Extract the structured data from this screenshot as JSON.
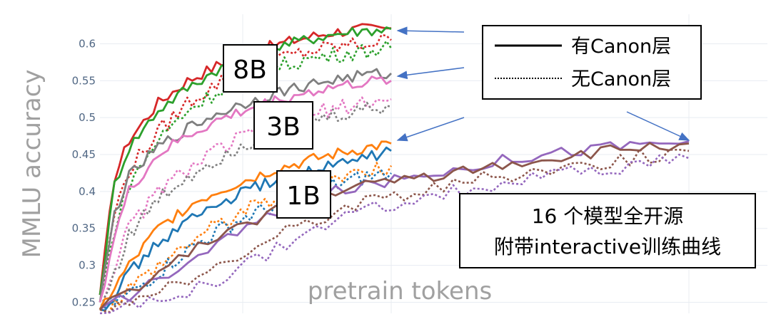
{
  "chart_data": {
    "type": "line",
    "ylabel": "MMLU accuracy",
    "xlabel": "pretrain tokens",
    "ylim": [
      0.235,
      0.64
    ],
    "y_ticks": [
      "0.25",
      "0.3",
      "0.35",
      "0.4",
      "0.45",
      "0.5",
      "0.55",
      "0.6"
    ],
    "y_tick_values": [
      0.25,
      0.3,
      0.35,
      0.4,
      0.45,
      0.5,
      0.55,
      0.6
    ],
    "grid": true,
    "series": [
      {
        "name": "8B",
        "color": "#d62728",
        "dash": false,
        "endpoint": 1,
        "x": [
          0,
          0.05,
          0.1,
          0.2,
          0.3,
          0.4,
          0.5,
          0.6,
          0.7,
          0.8,
          0.9,
          1
        ],
        "values": [
          0.26,
          0.42,
          0.47,
          0.52,
          0.55,
          0.57,
          0.585,
          0.598,
          0.608,
          0.616,
          0.62,
          0.621
        ]
      },
      {
        "color": "#2ca02c",
        "dash": false,
        "endpoint": 1,
        "x": [
          0,
          0.05,
          0.1,
          0.2,
          0.3,
          0.4,
          0.5,
          0.6,
          0.7,
          0.8,
          0.9,
          1
        ],
        "values": [
          0.26,
          0.41,
          0.46,
          0.51,
          0.54,
          0.565,
          0.58,
          0.595,
          0.605,
          0.613,
          0.618,
          0.62
        ]
      },
      {
        "color": "#d62728",
        "dash": true,
        "endpoint": 1,
        "x": [
          0,
          0.05,
          0.1,
          0.2,
          0.3,
          0.4,
          0.5,
          0.6,
          0.7,
          0.8,
          0.9,
          1
        ],
        "values": [
          0.25,
          0.37,
          0.43,
          0.48,
          0.52,
          0.545,
          0.565,
          0.578,
          0.588,
          0.595,
          0.6,
          0.605
        ]
      },
      {
        "color": "#2ca02c",
        "dash": true,
        "endpoint": 1,
        "x": [
          0,
          0.05,
          0.1,
          0.2,
          0.3,
          0.4,
          0.5,
          0.6,
          0.7,
          0.8,
          0.9,
          1
        ],
        "values": [
          0.25,
          0.35,
          0.41,
          0.47,
          0.51,
          0.535,
          0.555,
          0.568,
          0.578,
          0.585,
          0.59,
          0.594
        ]
      },
      {
        "name": "3B",
        "color": "#7f7f7f",
        "dash": false,
        "endpoint": 1,
        "x": [
          0,
          0.05,
          0.1,
          0.2,
          0.3,
          0.4,
          0.5,
          0.6,
          0.7,
          0.8,
          0.9,
          1
        ],
        "values": [
          0.25,
          0.37,
          0.42,
          0.46,
          0.485,
          0.505,
          0.52,
          0.533,
          0.543,
          0.551,
          0.557,
          0.56
        ]
      },
      {
        "color": "#e377c2",
        "dash": false,
        "endpoint": 1,
        "x": [
          0,
          0.05,
          0.1,
          0.2,
          0.3,
          0.4,
          0.5,
          0.6,
          0.7,
          0.8,
          0.9,
          1
        ],
        "values": [
          0.25,
          0.34,
          0.4,
          0.45,
          0.475,
          0.495,
          0.51,
          0.523,
          0.533,
          0.541,
          0.547,
          0.55
        ]
      },
      {
        "color": "#e377c2",
        "dash": true,
        "endpoint": 1,
        "x": [
          0,
          0.05,
          0.1,
          0.2,
          0.3,
          0.4,
          0.5,
          0.6,
          0.7,
          0.8,
          0.9,
          1
        ],
        "values": [
          0.24,
          0.3,
          0.35,
          0.4,
          0.43,
          0.455,
          0.475,
          0.49,
          0.502,
          0.512,
          0.52,
          0.525
        ]
      },
      {
        "color": "#7f7f7f",
        "dash": true,
        "endpoint": 1,
        "x": [
          0,
          0.05,
          0.1,
          0.2,
          0.3,
          0.4,
          0.5,
          0.6,
          0.7,
          0.8,
          0.9,
          1
        ],
        "values": [
          0.24,
          0.29,
          0.34,
          0.39,
          0.42,
          0.445,
          0.465,
          0.48,
          0.492,
          0.502,
          0.51,
          0.515
        ]
      },
      {
        "name": "1B",
        "color": "#ff7f0e",
        "dash": false,
        "endpoint": 1,
        "x": [
          0,
          0.05,
          0.1,
          0.2,
          0.3,
          0.4,
          0.5,
          0.6,
          0.7,
          0.8,
          0.9,
          1
        ],
        "values": [
          0.24,
          0.27,
          0.3,
          0.35,
          0.38,
          0.4,
          0.415,
          0.43,
          0.44,
          0.45,
          0.458,
          0.465
        ]
      },
      {
        "color": "#1f77b4",
        "dash": false,
        "endpoint": 1,
        "x": [
          0,
          0.05,
          0.1,
          0.2,
          0.3,
          0.4,
          0.5,
          0.6,
          0.7,
          0.8,
          0.9,
          1
        ],
        "values": [
          0.24,
          0.26,
          0.29,
          0.33,
          0.36,
          0.38,
          0.4,
          0.415,
          0.425,
          0.435,
          0.445,
          0.455
        ]
      },
      {
        "color": "#ff7f0e",
        "dash": true,
        "endpoint": 1,
        "x": [
          0,
          0.05,
          0.1,
          0.2,
          0.3,
          0.4,
          0.5,
          0.6,
          0.7,
          0.8,
          0.9,
          1
        ],
        "values": [
          0.24,
          0.25,
          0.27,
          0.3,
          0.33,
          0.355,
          0.375,
          0.39,
          0.405,
          0.418,
          0.428,
          0.435
        ]
      },
      {
        "color": "#1f77b4",
        "dash": true,
        "endpoint": 1,
        "x": [
          0,
          0.05,
          0.1,
          0.2,
          0.3,
          0.4,
          0.5,
          0.6,
          0.7,
          0.8,
          0.9,
          1
        ],
        "values": [
          0.24,
          0.25,
          0.26,
          0.29,
          0.32,
          0.345,
          0.365,
          0.38,
          0.395,
          0.408,
          0.418,
          0.425
        ]
      },
      {
        "color": "#9467bd",
        "dash": false,
        "endpoint": 2,
        "x": [
          0,
          0.1,
          0.2,
          0.3,
          0.4,
          0.5,
          0.6,
          0.7,
          0.8,
          0.9,
          1
        ],
        "values": [
          0.24,
          0.28,
          0.33,
          0.37,
          0.4,
          0.415,
          0.43,
          0.445,
          0.455,
          0.463,
          0.468
        ]
      },
      {
        "color": "#8c564b",
        "dash": false,
        "endpoint": 2,
        "x": [
          0,
          0.1,
          0.2,
          0.3,
          0.4,
          0.5,
          0.6,
          0.7,
          0.8,
          0.9,
          1
        ],
        "values": [
          0.24,
          0.29,
          0.34,
          0.375,
          0.4,
          0.415,
          0.425,
          0.438,
          0.448,
          0.458,
          0.465
        ]
      },
      {
        "color": "#8c564b",
        "dash": true,
        "endpoint": 2,
        "x": [
          0,
          0.1,
          0.2,
          0.3,
          0.4,
          0.5,
          0.6,
          0.7,
          0.8,
          0.9,
          1
        ],
        "values": [
          0.24,
          0.26,
          0.3,
          0.34,
          0.375,
          0.395,
          0.41,
          0.425,
          0.435,
          0.445,
          0.455
        ]
      },
      {
        "color": "#9467bd",
        "dash": true,
        "endpoint": 2,
        "x": [
          0,
          0.1,
          0.2,
          0.3,
          0.4,
          0.5,
          0.6,
          0.7,
          0.8,
          0.9,
          1
        ],
        "values": [
          0.235,
          0.25,
          0.28,
          0.32,
          0.36,
          0.385,
          0.4,
          0.413,
          0.425,
          0.435,
          0.445
        ]
      }
    ]
  },
  "labels": {
    "size_8b": "8B",
    "size_3b": "3B",
    "size_1b": "1B"
  },
  "legend": {
    "solid_label": "有Canon层",
    "dotted_label": "无Canon层"
  },
  "info_box": {
    "line1": "16 个模型全开源",
    "line2": "附带interactive训练曲线"
  },
  "colors": {
    "arrow": "#4472c4",
    "grid": "#e8ecf2",
    "tick": "#506784",
    "axis_title": "#a0a0a0"
  }
}
